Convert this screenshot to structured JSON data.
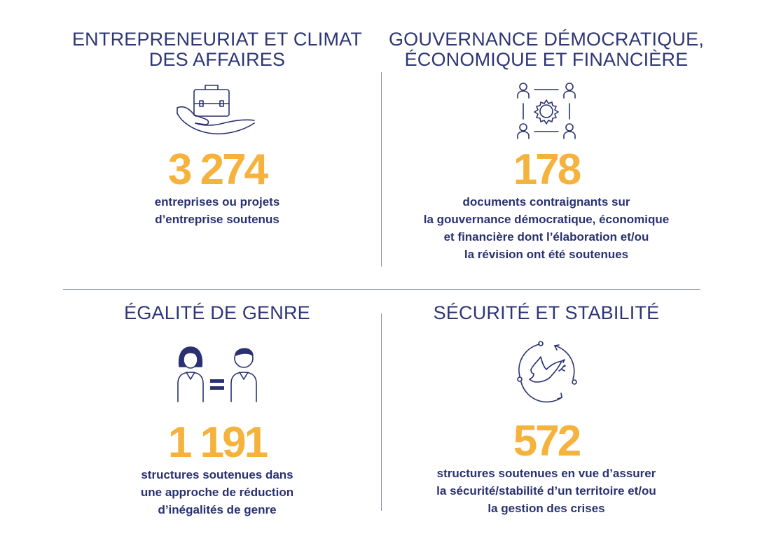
{
  "panels": [
    {
      "title_lines": [
        "ENTREPRENEURIAT ET CLIMAT",
        "DES AFFAIRES"
      ],
      "icon": "briefcase-hand-icon",
      "stat": "3 274",
      "desc_lines": [
        "entreprises ou projets",
        "d’entreprise soutenus"
      ]
    },
    {
      "title_lines": [
        "GOUVERNANCE DÉMOCRATIQUE,",
        "ÉCONOMIQUE ET FINANCIÈRE"
      ],
      "icon": "people-gear-network-icon",
      "stat": "178",
      "desc_lines": [
        "documents contraignants sur",
        "la gouvernance démocratique, économique",
        "et financière dont l’élaboration et/ou",
        "la révision ont été soutenues"
      ]
    },
    {
      "title_lines": [
        "ÉGALITÉ DE GENRE"
      ],
      "icon": "woman-equals-man-icon",
      "stat": "1 191",
      "desc_lines": [
        "structures soutenues dans",
        "une approche de réduction",
        "d’inégalités de genre"
      ]
    },
    {
      "title_lines": [
        "SÉCURITÉ ET STABILITÉ"
      ],
      "icon": "peace-dove-cycle-icon",
      "stat": "572",
      "desc_lines": [
        "structures soutenues en vue d’assurer",
        "la sécurité/stabilité d’un territoire et/ou",
        "la gestion des crises"
      ]
    }
  ],
  "colors": {
    "navy": "#2a3170",
    "accent": "#f5b23c",
    "divider": "#8d91b0"
  }
}
